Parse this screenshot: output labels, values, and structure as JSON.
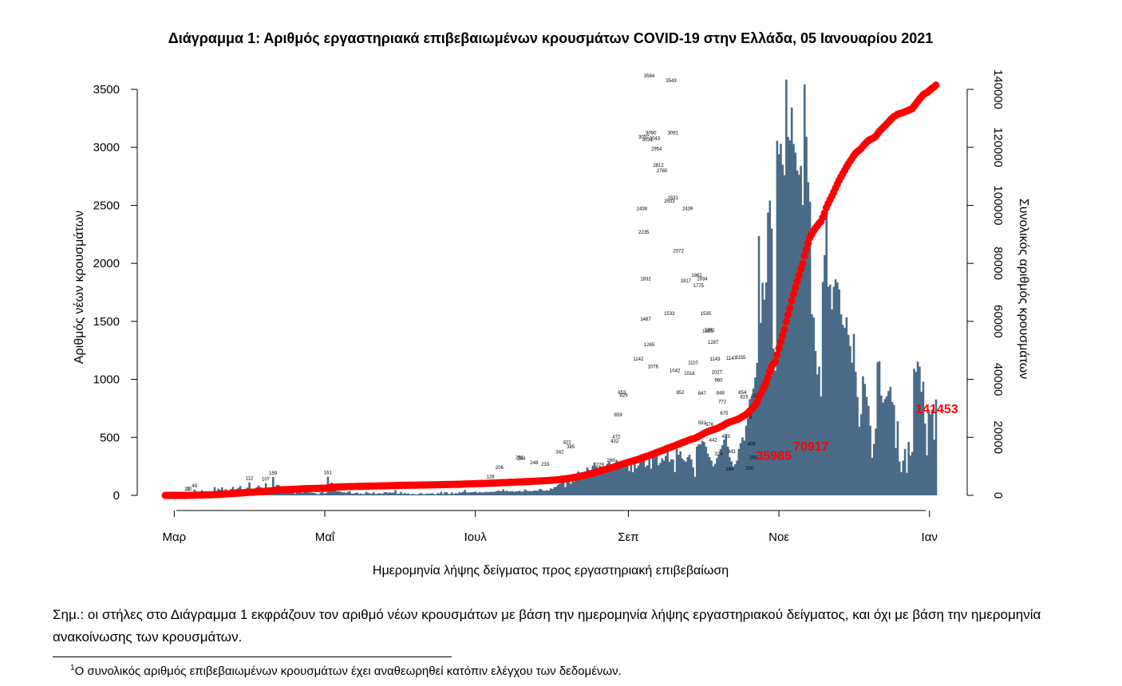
{
  "chart_data": {
    "type": "bar",
    "title": "Διάγραμμα 1: Αριθμός εργαστηριακά επιβεβαιωμένων κρουσμάτων COVID-19 στην Ελλάδα, 05 Ιανουαρίου 2021",
    "xlabel": "Ημερομηνία λήψης δείγματος προς εργαστηριακή επιβεβαίωση",
    "ylabel": "Αριθμός νέων κρουσμάτων",
    "y2label": "Συνολικός αριθμός κρουσμάτων",
    "x_tick_labels": [
      "Μαρ",
      "Μαΐ",
      "Ιουλ",
      "Σεπ",
      "Νοε",
      "Ιαν"
    ],
    "y_ticks": [
      0,
      500,
      1000,
      1500,
      2000,
      2500,
      3000,
      3500
    ],
    "y2_ticks": [
      0,
      20000,
      40000,
      60000,
      80000,
      100000,
      120000,
      140000
    ],
    "ylim": [
      -100,
      3700
    ],
    "y2lim": [
      -2700,
      146000
    ],
    "grid": false,
    "bar_color": "#4a6b88",
    "line_color": "#ff0000",
    "date_start": "2020-02-26",
    "date_end": "2021-01-04",
    "series": [
      {
        "name": "Αριθμός νέων κρουσμάτων",
        "kind": "bar",
        "values": [
          0,
          0,
          0,
          0,
          0,
          2,
          2,
          0,
          2,
          0,
          0,
          2,
          22,
          7,
          2,
          0,
          49,
          20,
          21,
          7,
          45,
          27,
          31,
          11,
          23,
          4,
          20,
          71,
          24,
          58,
          47,
          69,
          25,
          53,
          31,
          42,
          55,
          73,
          51,
          55,
          65,
          81,
          35,
          42,
          57,
          67,
          112,
          25,
          38,
          49,
          70,
          85,
          71,
          29,
          56,
          107,
          40,
          34,
          55,
          159,
          49,
          88,
          90,
          42,
          38,
          56,
          30,
          38,
          51,
          46,
          28,
          15,
          47,
          35,
          69,
          20,
          44,
          28,
          33,
          23,
          25,
          22,
          18,
          12,
          10,
          25,
          30,
          15,
          20,
          161,
          100,
          110,
          80,
          50,
          35,
          36,
          32,
          25,
          26,
          21,
          30,
          35,
          15,
          15,
          20,
          24,
          12,
          16,
          10,
          13,
          30,
          22,
          15,
          15,
          26,
          12,
          13,
          20,
          13,
          15,
          28,
          27,
          20,
          26,
          20,
          24,
          45,
          12,
          15,
          30,
          12,
          20,
          13,
          17,
          8,
          12,
          12,
          8,
          8,
          15,
          21,
          10,
          10,
          15,
          16,
          14,
          20,
          12,
          8,
          20,
          15,
          30,
          12,
          25,
          27,
          12,
          12,
          26,
          12,
          20,
          16,
          27,
          22,
          30,
          47,
          25,
          25,
          25,
          27,
          30,
          32,
          20,
          30,
          25,
          24,
          30,
          30,
          27,
          30,
          30,
          30,
          35,
          40,
          40,
          35,
          52,
          35,
          40,
          33,
          35,
          37,
          30,
          35,
          35,
          40,
          30,
          35,
          52,
          40,
          36,
          38,
          35,
          42,
          40,
          40,
          55,
          50,
          40,
          40,
          45,
          40,
          60,
          55,
          70,
          74,
          90,
          100,
          110,
          128,
          70,
          115,
          130,
          100,
          159,
          120,
          175,
          206,
          140,
          165,
          177,
          190,
          240,
          220,
          160,
          256,
          283,
          247,
          211,
          248,
          236,
          241,
          190,
          273,
          290,
          230,
          250,
          228,
          305,
          264,
          284,
          291,
          239,
          270,
          280,
          210,
          285,
          200,
          300,
          233,
          258,
          290,
          350,
          300,
          245,
          260,
          335,
          230,
          345,
          362,
          380,
          260,
          280,
          320,
          300,
          340,
          422,
          290,
          310,
          310,
          200,
          400,
          350,
          380,
          317,
          302,
          290,
          330,
          350,
          310,
          241,
          160,
          420,
          440,
          440,
          470,
          460,
          420,
          360,
          330,
          300,
          250,
          270,
          320,
          350,
          400,
          432,
          480,
          520,
          420,
          329,
          292,
          250,
          269,
          300,
          400,
          450,
          500,
          472,
          600,
          659,
          829,
          853,
          920,
          1016,
          1142,
          2235,
          1487,
          1832,
          1687,
          1835,
          2438,
          2540,
          2300,
          1265,
          1076,
          3057,
          2940,
          3031,
          2850,
          2760,
          3584,
          3090,
          3061,
          3343,
          3029,
          2954,
          2800,
          2765,
          2840,
          2503,
          3543,
          3091,
          2700,
          2531,
          1560,
          1533,
          1246,
          1042,
          1110,
          852,
          1840,
          2072,
          2439,
          1798,
          1817,
          1602,
          1798,
          1862,
          1834,
          1775,
          1560,
          1469,
          1444,
          1535,
          1383,
          1287,
          1143,
          1391,
          1066,
          847,
          591,
          700,
          1027,
          960,
          848,
          772,
          600,
          324,
          442,
          576,
          1147,
          1155,
          860,
          800,
          830,
          854,
          900,
          935,
          805,
          780,
          408,
          639,
          292,
          200,
          300,
          400,
          194,
          460,
          343,
          375,
          1091,
          1064,
          1153,
          1110,
          892,
          980,
          620,
          345,
          720,
          700,
          742,
          480,
          826
        ]
      },
      {
        "name": "Συνολικός αριθμός κρουσμάτων",
        "kind": "cumulative",
        "final_value": 141453
      }
    ],
    "annotations": [
      {
        "label": "35985",
        "date": "2020-10-30"
      },
      {
        "label": "70917",
        "date": "2020-11-14"
      },
      {
        "label": "141453",
        "date": "2021-01-04"
      }
    ],
    "bar_value_labels": [
      {
        "i": 265,
        "v": "3584"
      },
      {
        "i": 277,
        "v": "3543"
      },
      {
        "i": 262,
        "v": "3057"
      },
      {
        "i": 266,
        "v": "3090"
      },
      {
        "i": 278,
        "v": "3091"
      },
      {
        "i": 268,
        "v": "3043"
      },
      {
        "i": 264,
        "v": "3031"
      },
      {
        "i": 269,
        "v": "2954"
      },
      {
        "i": 270,
        "v": "2812"
      },
      {
        "i": 272,
        "v": "2765"
      },
      {
        "i": 261,
        "v": "2438"
      },
      {
        "i": 276,
        "v": "2503"
      },
      {
        "i": 278,
        "v": "2531"
      },
      {
        "i": 286,
        "v": "2439"
      },
      {
        "i": 262,
        "v": "2235"
      },
      {
        "i": 281,
        "v": "2072"
      },
      {
        "i": 263,
        "v": "1832"
      },
      {
        "i": 291,
        "v": "1862"
      },
      {
        "i": 294,
        "v": "1834"
      },
      {
        "i": 285,
        "v": "1817"
      },
      {
        "i": 292,
        "v": "1775"
      },
      {
        "i": 296,
        "v": "1535"
      },
      {
        "i": 263,
        "v": "1487"
      },
      {
        "i": 276,
        "v": "1533"
      },
      {
        "i": 298,
        "v": "1391"
      },
      {
        "i": 297,
        "v": "1383"
      },
      {
        "i": 300,
        "v": "1287"
      },
      {
        "i": 265,
        "v": "1265"
      },
      {
        "i": 259,
        "v": "1142"
      },
      {
        "i": 301,
        "v": "1143"
      },
      {
        "i": 310,
        "v": "1147"
      },
      {
        "i": 315,
        "v": "1155"
      },
      {
        "i": 267,
        "v": "1076"
      },
      {
        "i": 279,
        "v": "1042"
      },
      {
        "i": 289,
        "v": "1110"
      },
      {
        "i": 287,
        "v": "1018"
      },
      {
        "i": 302,
        "v": "1027"
      },
      {
        "i": 303,
        "v": "960"
      },
      {
        "i": 282,
        "v": "852"
      },
      {
        "i": 294,
        "v": "847"
      },
      {
        "i": 304,
        "v": "848"
      },
      {
        "i": 305,
        "v": "772"
      },
      {
        "i": 306,
        "v": "675"
      },
      {
        "i": 316,
        "v": "854"
      },
      {
        "i": 317,
        "v": "815"
      },
      {
        "i": 319,
        "v": "639"
      },
      {
        "i": 294,
        "v": "591"
      },
      {
        "i": 298,
        "v": "576"
      },
      {
        "i": 307,
        "v": "473"
      },
      {
        "i": 300,
        "v": "442"
      },
      {
        "i": 303,
        "v": "324"
      },
      {
        "i": 310,
        "v": "343"
      },
      {
        "i": 321,
        "v": "408"
      },
      {
        "i": 322,
        "v": "292"
      },
      {
        "i": 320,
        "v": "200"
      },
      {
        "i": 309,
        "v": "194"
      },
      {
        "i": 323,
        "v": "826"
      },
      {
        "i": 248,
        "v": "659"
      },
      {
        "i": 250,
        "v": "853"
      },
      {
        "i": 251,
        "v": "829"
      },
      {
        "i": 247,
        "v": "472"
      },
      {
        "i": 246,
        "v": "432"
      },
      {
        "i": 244,
        "v": "269"
      },
      {
        "i": 238,
        "v": "229"
      },
      {
        "i": 59,
        "v": "159"
      },
      {
        "i": 89,
        "v": "161"
      },
      {
        "i": 46,
        "v": "112"
      },
      {
        "i": 55,
        "v": "107"
      },
      {
        "i": 16,
        "v": "49"
      },
      {
        "i": 12,
        "v": "22"
      },
      {
        "i": 13,
        "v": "20"
      },
      {
        "i": 220,
        "v": "422"
      },
      {
        "i": 216,
        "v": "342"
      },
      {
        "i": 194,
        "v": "291"
      },
      {
        "i": 195,
        "v": "284"
      },
      {
        "i": 202,
        "v": "248"
      },
      {
        "i": 208,
        "v": "233"
      },
      {
        "i": 183,
        "v": "206"
      },
      {
        "i": 178,
        "v": "128"
      },
      {
        "i": 222,
        "v": "385"
      }
    ]
  },
  "note": {
    "text": "Σημ.: οι στήλες στο Διάγραμμα 1 εκφράζουν τον αριθμό νέων κρουσμάτων με βάση την ημερομηνία λήψης εργαστηριακού δείγματος, και όχι με βάση την ημερομηνία ανακοίνωσης των κρουσμάτων."
  },
  "footnote": {
    "marker": "1",
    "text": "Ο συνολικός αριθμός επιβεβαιωμένων κρουσμάτων έχει αναθεωρηθεί κατόπιν ελέγχου των δεδομένων."
  }
}
